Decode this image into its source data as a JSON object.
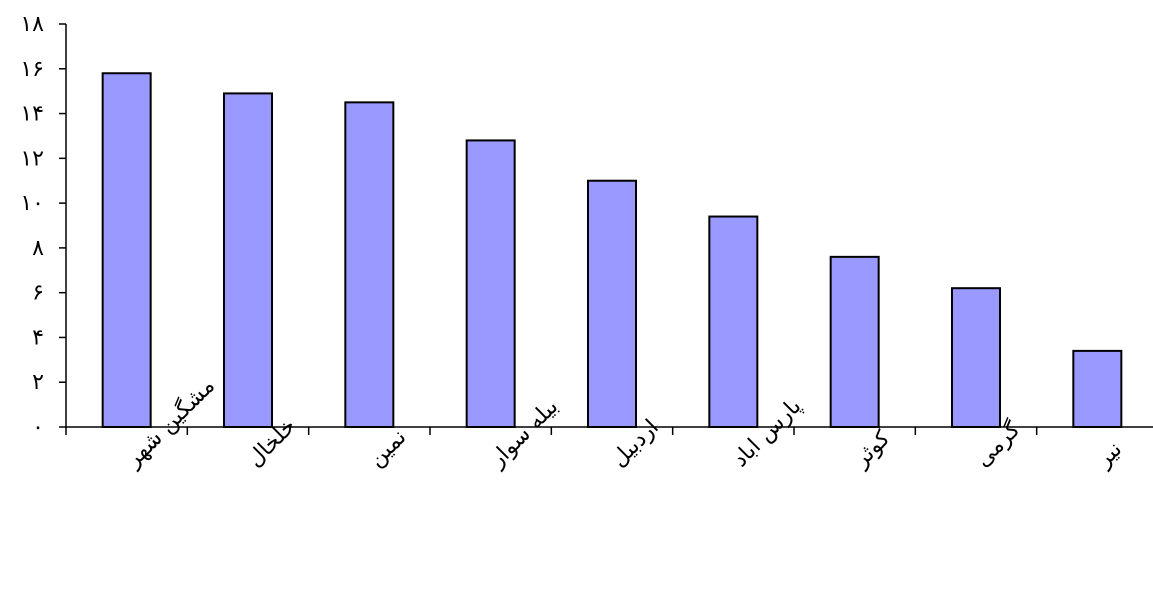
{
  "chart_data": {
    "type": "bar",
    "title": "",
    "xlabel": "",
    "ylabel": "",
    "categories": [
      "مشگین شهر",
      "خلخال",
      "نمین",
      "بیله سوار",
      "اردبیل",
      "پارس اباد",
      "کوثر",
      "گرمی",
      "نیر"
    ],
    "values": [
      15.8,
      14.9,
      14.5,
      12.8,
      11.0,
      9.4,
      7.6,
      6.2,
      3.4
    ],
    "ylim": [
      0,
      18
    ],
    "yticks": [
      0,
      2,
      4,
      6,
      8,
      10,
      12,
      14,
      16,
      18
    ],
    "ytick_labels": [
      "۰",
      "۲",
      "۴",
      "۶",
      "۸",
      "۱۰",
      "۱۲",
      "۱۴",
      "۱۶",
      "۱۸"
    ],
    "bar_color": "#9999ff",
    "grid": false,
    "legend": "none"
  }
}
